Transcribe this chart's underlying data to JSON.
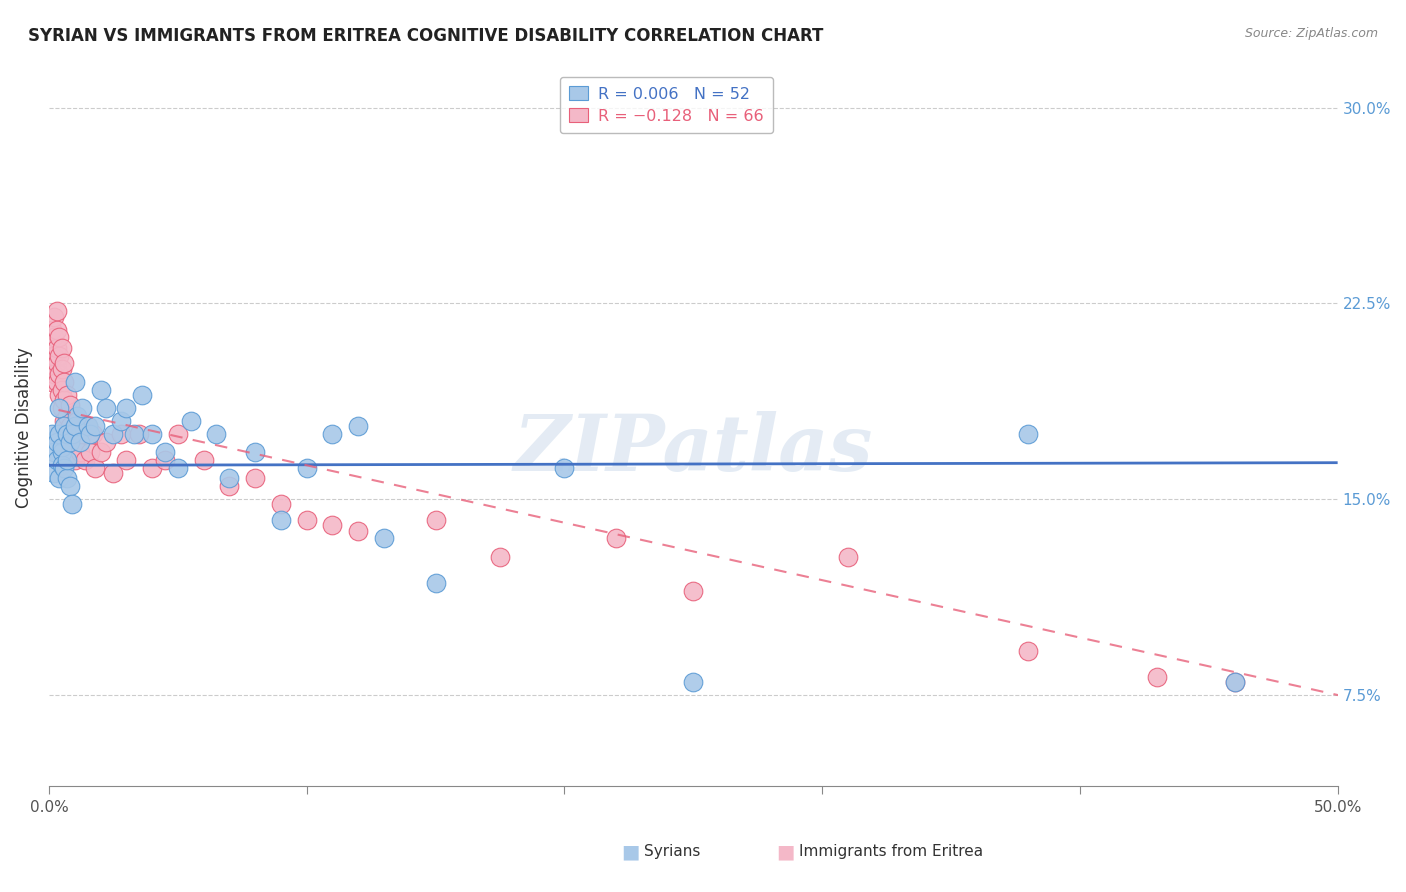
{
  "title": "SYRIAN VS IMMIGRANTS FROM ERITREA COGNITIVE DISABILITY CORRELATION CHART",
  "source": "Source: ZipAtlas.com",
  "ylabel": "Cognitive Disability",
  "xlim": [
    0.0,
    0.5
  ],
  "ylim": [
    0.04,
    0.315
  ],
  "ytick_vals": [
    0.075,
    0.15,
    0.225,
    0.3
  ],
  "ytick_labels": [
    "7.5%",
    "15.0%",
    "22.5%",
    "30.0%"
  ],
  "xtick_vals": [
    0.0,
    0.1,
    0.2,
    0.3,
    0.4,
    0.5
  ],
  "xtick_labels_show": [
    "0.0%",
    "",
    "",
    "",
    "",
    "50.0%"
  ],
  "color_syrian_fill": "#a8c8e8",
  "color_syrian_edge": "#5b9bd5",
  "color_eritrea_fill": "#f4b8c8",
  "color_eritrea_edge": "#e8607a",
  "color_syrian_line": "#4472c4",
  "color_eritrea_line": "#e8607a",
  "color_right_axis": "#5b9bd5",
  "watermark": "ZIPatlas",
  "syrians_x": [
    0.001,
    0.002,
    0.002,
    0.003,
    0.003,
    0.004,
    0.004,
    0.004,
    0.005,
    0.005,
    0.005,
    0.006,
    0.006,
    0.007,
    0.007,
    0.007,
    0.008,
    0.008,
    0.009,
    0.009,
    0.01,
    0.01,
    0.011,
    0.012,
    0.013,
    0.015,
    0.016,
    0.018,
    0.02,
    0.022,
    0.025,
    0.028,
    0.03,
    0.033,
    0.036,
    0.04,
    0.045,
    0.05,
    0.055,
    0.065,
    0.07,
    0.08,
    0.09,
    0.1,
    0.11,
    0.12,
    0.13,
    0.15,
    0.2,
    0.25,
    0.38,
    0.46
  ],
  "syrians_y": [
    0.175,
    0.16,
    0.168,
    0.165,
    0.172,
    0.158,
    0.175,
    0.185,
    0.168,
    0.163,
    0.17,
    0.162,
    0.178,
    0.158,
    0.175,
    0.165,
    0.155,
    0.172,
    0.148,
    0.175,
    0.178,
    0.195,
    0.182,
    0.172,
    0.185,
    0.178,
    0.175,
    0.178,
    0.192,
    0.185,
    0.175,
    0.18,
    0.185,
    0.175,
    0.19,
    0.175,
    0.168,
    0.162,
    0.18,
    0.175,
    0.158,
    0.168,
    0.142,
    0.162,
    0.175,
    0.178,
    0.135,
    0.118,
    0.162,
    0.08,
    0.175,
    0.08
  ],
  "eritrea_x": [
    0.001,
    0.001,
    0.001,
    0.002,
    0.002,
    0.002,
    0.002,
    0.003,
    0.003,
    0.003,
    0.003,
    0.003,
    0.004,
    0.004,
    0.004,
    0.004,
    0.005,
    0.005,
    0.005,
    0.005,
    0.006,
    0.006,
    0.006,
    0.006,
    0.007,
    0.007,
    0.007,
    0.008,
    0.008,
    0.008,
    0.009,
    0.009,
    0.01,
    0.01,
    0.011,
    0.012,
    0.013,
    0.014,
    0.015,
    0.016,
    0.017,
    0.018,
    0.02,
    0.022,
    0.025,
    0.028,
    0.03,
    0.035,
    0.04,
    0.045,
    0.05,
    0.06,
    0.07,
    0.08,
    0.09,
    0.1,
    0.11,
    0.12,
    0.15,
    0.175,
    0.22,
    0.25,
    0.31,
    0.38,
    0.43,
    0.46
  ],
  "eritrea_y": [
    0.195,
    0.205,
    0.215,
    0.198,
    0.205,
    0.212,
    0.22,
    0.195,
    0.202,
    0.208,
    0.215,
    0.222,
    0.19,
    0.198,
    0.205,
    0.212,
    0.185,
    0.192,
    0.2,
    0.208,
    0.18,
    0.188,
    0.195,
    0.202,
    0.175,
    0.182,
    0.19,
    0.17,
    0.178,
    0.186,
    0.168,
    0.175,
    0.165,
    0.172,
    0.18,
    0.168,
    0.175,
    0.165,
    0.178,
    0.168,
    0.175,
    0.162,
    0.168,
    0.172,
    0.16,
    0.175,
    0.165,
    0.175,
    0.162,
    0.165,
    0.175,
    0.165,
    0.155,
    0.158,
    0.148,
    0.142,
    0.14,
    0.138,
    0.142,
    0.128,
    0.135,
    0.115,
    0.128,
    0.092,
    0.082,
    0.08
  ],
  "syrian_line_y0": 0.163,
  "syrian_line_y1": 0.164,
  "eritrea_line_y0": 0.185,
  "eritrea_line_y1": 0.075
}
